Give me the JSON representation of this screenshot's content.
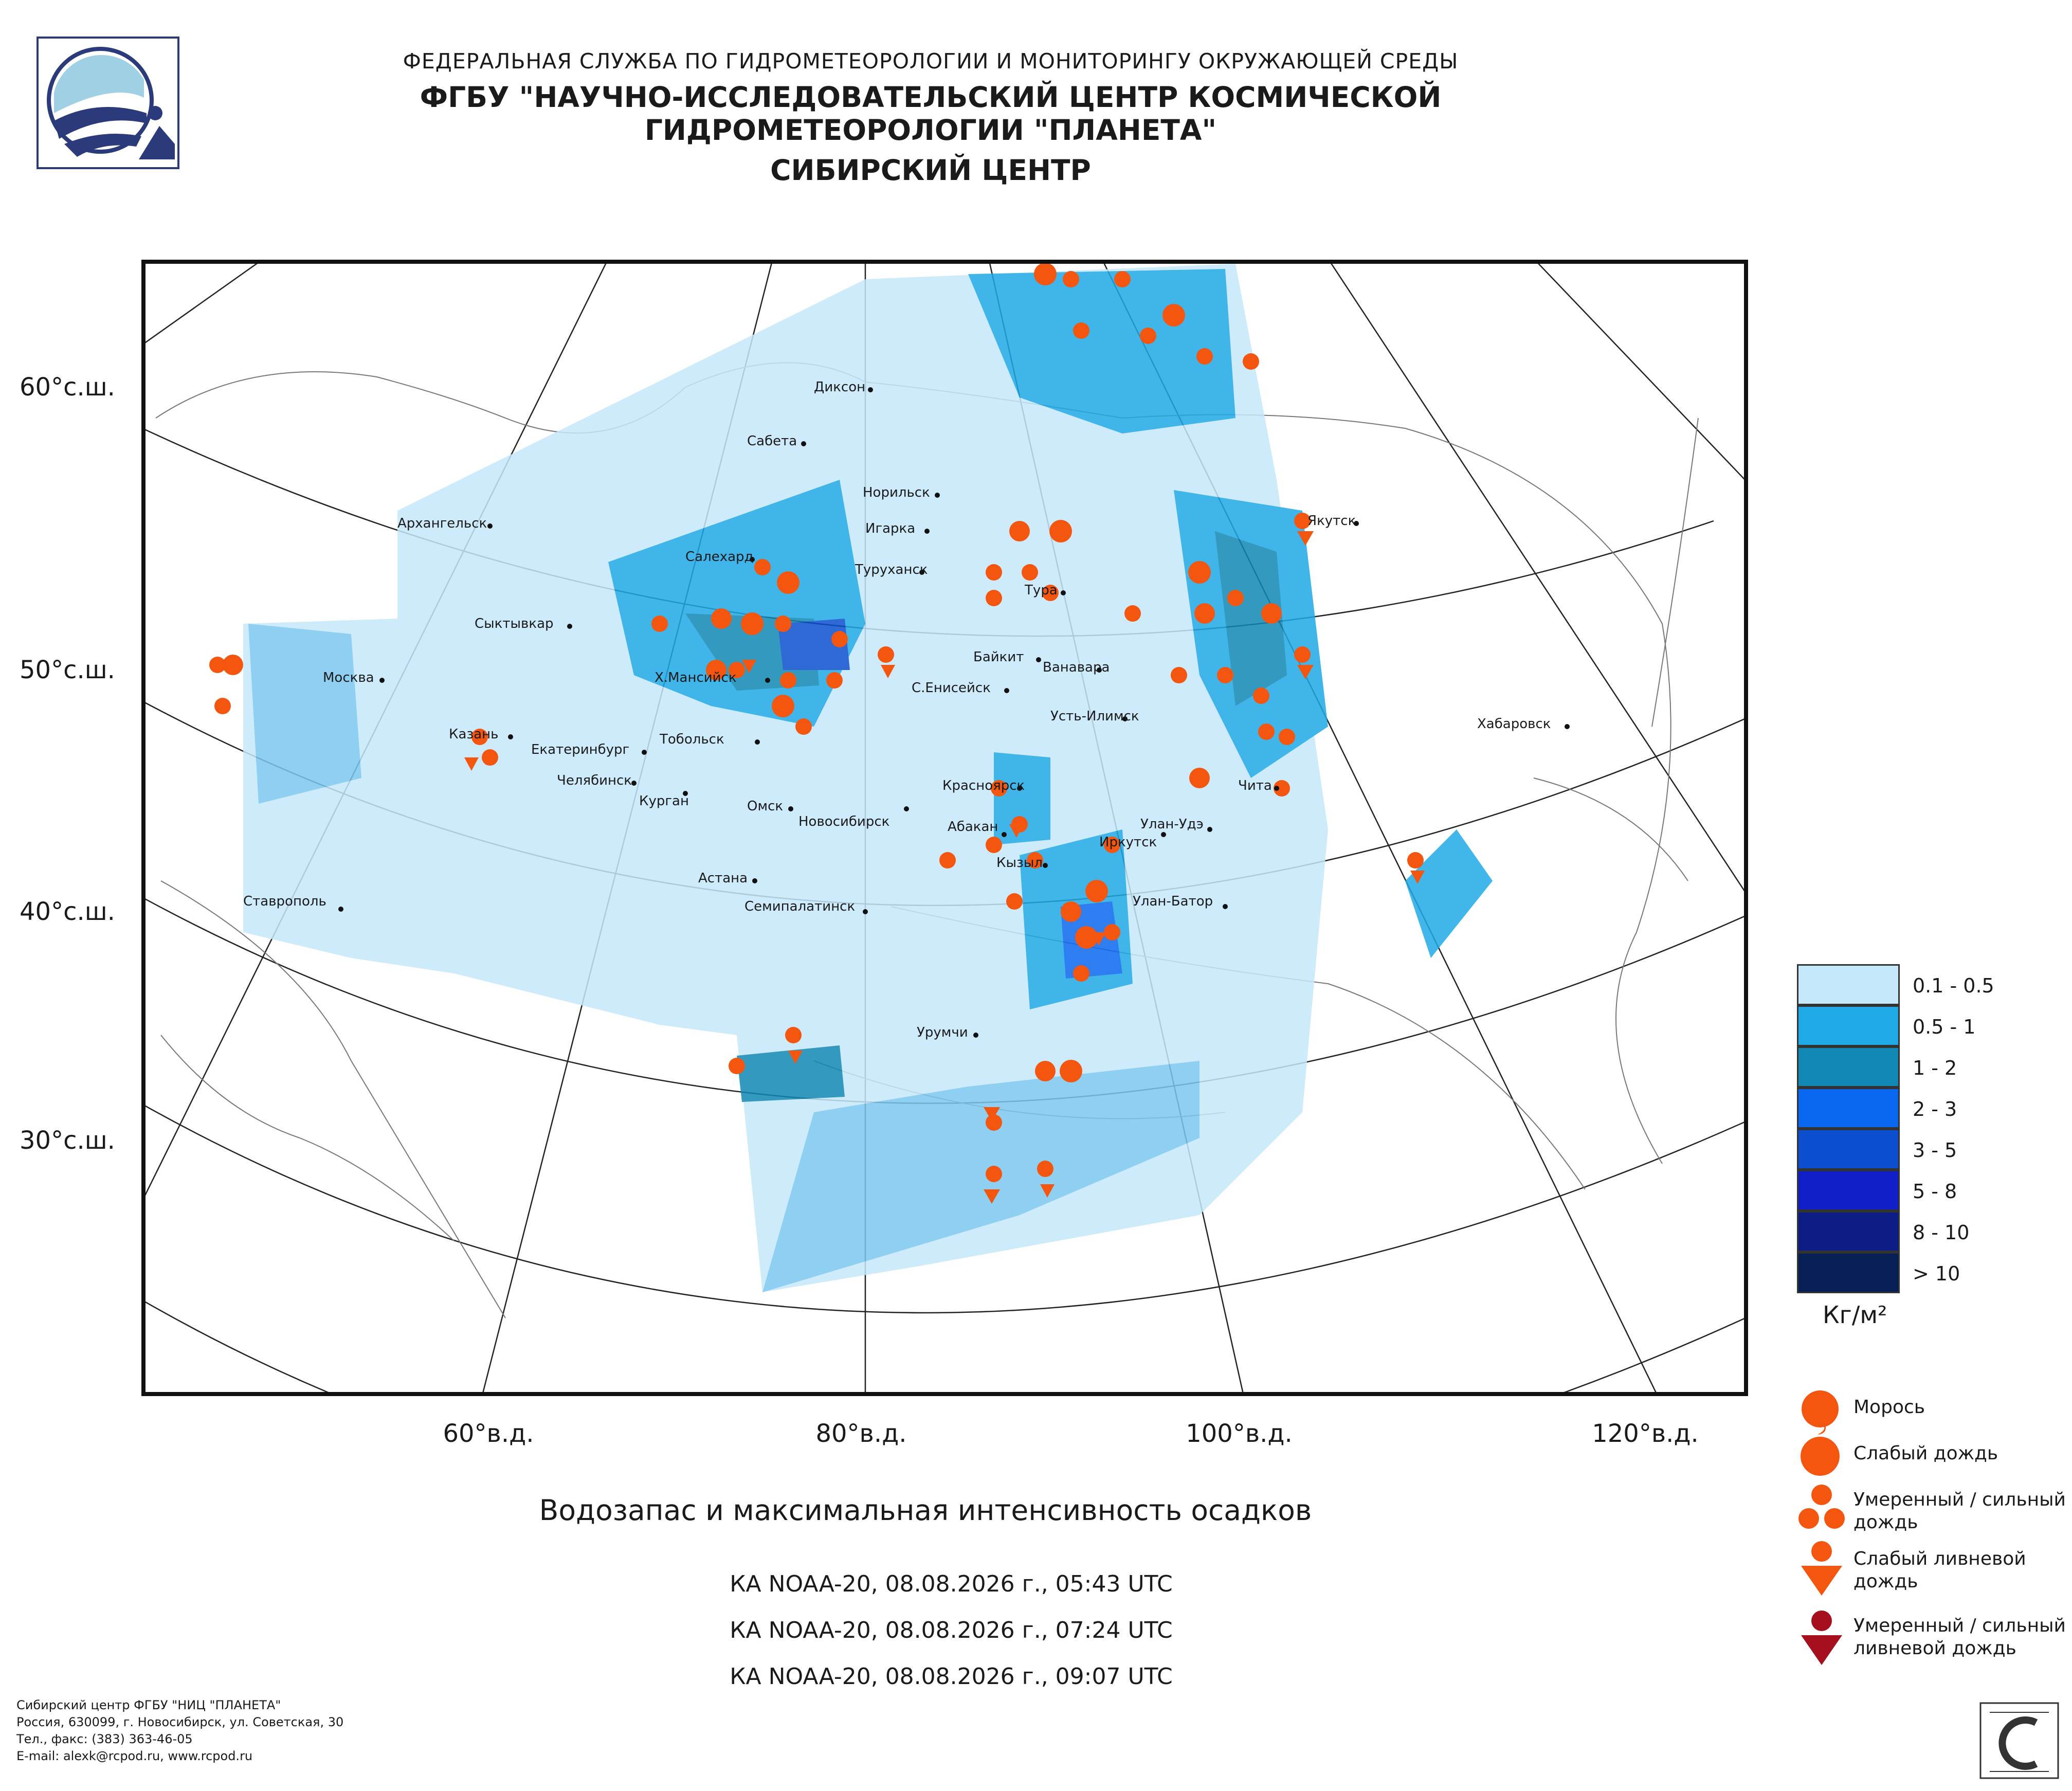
{
  "header": {
    "line1": "ФЕДЕРАЛЬНАЯ СЛУЖБА ПО ГИДРОМЕТЕОРОЛОГИИ И МОНИТОРИНГУ ОКРУЖАЮЩЕЙ СРЕДЫ",
    "line2": "ФГБУ \"НАУЧНО-ИССЛЕДОВАТЕЛЬСКИЙ ЦЕНТР КОСМИЧЕСКОЙ ГИДРОМЕТЕОРОЛОГИИ \"ПЛАНЕТА\"",
    "line3": "СИБИРСКИЙ ЦЕНТР"
  },
  "axes": {
    "lat_labels": [
      "60°с.ш.",
      "50°с.ш.",
      "40°с.ш.",
      "30°с.ш."
    ],
    "lon_labels": [
      "60°в.д.",
      "80°в.д.",
      "100°в.д.",
      "120°в.д."
    ]
  },
  "cities": [
    "Диксон",
    "Сабета",
    "Норильск",
    "Игарка",
    "Туруханск",
    "Тура",
    "Якутск",
    "Архангельск",
    "Салехард",
    "Сыктывкар",
    "Москва",
    "Х.Мансийск",
    "Байкит",
    "Ванавара",
    "С.Енисейск",
    "Усть-Илимск",
    "Хабаровск",
    "Казань",
    "Екатеринбург",
    "Тобольск",
    "Челябинск",
    "Курган",
    "Омск",
    "Новосибирск",
    "Красноярск",
    "Абакан",
    "Улан-Удэ",
    "Чита",
    "Иркутск",
    "Кызыл",
    "Ставрополь",
    "Астана",
    "Семипалатинск",
    "Улан-Батор",
    "Урумчи"
  ],
  "legend": {
    "colors": [
      {
        "label": "0.1 - 0.5",
        "color": "#c5e8fb"
      },
      {
        "label": "0.5 - 1",
        "color": "#1fa9e6"
      },
      {
        "label": "1 - 2",
        "color": "#1188b3"
      },
      {
        "label": "2 - 3",
        "color": "#0a67ef"
      },
      {
        "label": "3 - 5",
        "color": "#0b4fce"
      },
      {
        "label": "5 - 8",
        "color": "#111fc8"
      },
      {
        "label": "8 - 10",
        "color": "#0c1e86"
      },
      {
        "label": "> 10",
        "color": "#061f55"
      }
    ],
    "unit": "Кг/м²",
    "symbols": [
      {
        "label": "Морось",
        "icon": "drizzle-icon"
      },
      {
        "label": "Слабый дождь",
        "icon": "light-rain-icon"
      },
      {
        "label": "Умеренный / сильный дождь",
        "icon": "moderate-rain-icon"
      },
      {
        "label": "Слабый ливневой дождь",
        "icon": "light-shower-icon"
      },
      {
        "label": "Умеренный / сильный ливневой дождь",
        "icon": "heavy-shower-icon"
      }
    ]
  },
  "title": "Водозапас и максимальная интенсивность осадков",
  "passes": [
    "КА NOAA-20, 08.08.2026 г., 05:43 UTC",
    "КА NOAA-20, 08.08.2026 г., 07:24 UTC",
    "КА NOAA-20, 08.08.2026 г., 09:07 UTC"
  ],
  "footer": [
    "Сибирский центр ФГБУ \"НИЦ \"ПЛАНЕТА\"",
    "Россия, 630099, г. Новосибирск, ул. Советская, 30",
    "Тел., факс: (383) 363-46-05",
    "E-mail: alexk@rcpod.ru, www.rcpod.ru"
  ],
  "colors": {
    "symbol_orange": "#f4560f",
    "symbol_dark_red": "#a50f1e"
  }
}
